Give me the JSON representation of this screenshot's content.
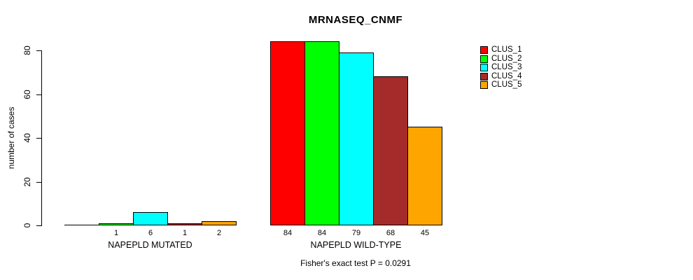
{
  "title": "MRNASEQ_CNMF",
  "annotation": "Fisher's exact test P = 0.0291",
  "chart_data": {
    "type": "bar",
    "title": "MRNASEQ_CNMF",
    "xlabel": "",
    "ylabel": "number of cases",
    "ylim": [
      0,
      80
    ],
    "yticks": [
      0,
      20,
      40,
      60,
      80
    ],
    "grid": false,
    "legend_position": "top-right",
    "categories": [
      "NAPEPLD MUTATED",
      "NAPEPLD WILD-TYPE"
    ],
    "series": [
      {
        "name": "CLUS_1",
        "color": "#FF0000",
        "values": [
          0,
          84
        ]
      },
      {
        "name": "CLUS_2",
        "color": "#00FF00",
        "values": [
          1,
          84
        ]
      },
      {
        "name": "CLUS_3",
        "color": "#00FFFF",
        "values": [
          6,
          79
        ]
      },
      {
        "name": "CLUS_4",
        "color": "#A52A2A",
        "values": [
          1,
          68
        ]
      },
      {
        "name": "CLUS_5",
        "color": "#FFA500",
        "values": [
          2,
          45
        ]
      }
    ],
    "bar_labels": [
      [
        "",
        "1",
        "6",
        "1",
        "2"
      ],
      [
        "84",
        "84",
        "79",
        "68",
        "45"
      ]
    ],
    "annotation": "Fisher's exact test P = 0.0291"
  }
}
